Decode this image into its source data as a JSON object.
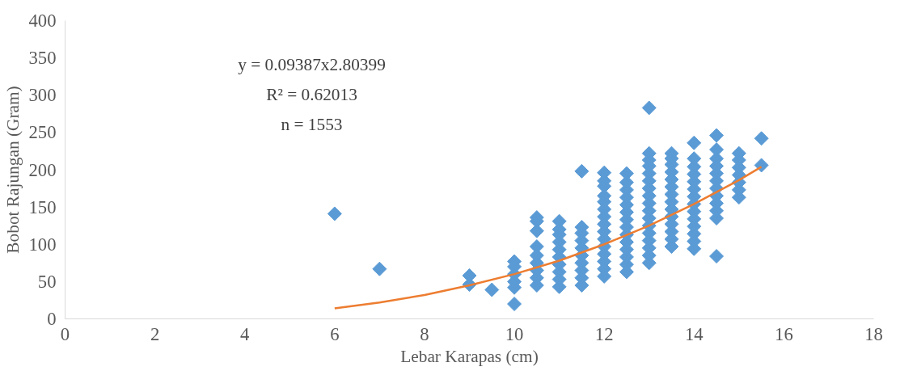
{
  "chart_data": {
    "type": "scatter",
    "xlabel": "Lebar Karapas (cm)",
    "ylabel": "Bobot Rajungan (Gram)",
    "annotations": [
      "y = 0.09387x2.80399",
      "R² = 0.62013",
      "n = 1553"
    ],
    "xlim": [
      0,
      18
    ],
    "xticks": [
      0,
      2,
      4,
      6,
      8,
      10,
      12,
      14,
      16,
      18
    ],
    "ylim": [
      0,
      400
    ],
    "yticks": [
      0,
      50,
      100,
      150,
      200,
      250,
      300,
      350,
      400
    ],
    "grid": false,
    "series": [
      {
        "marker": "diamond",
        "color": "#5b9bd5",
        "x": [
          6,
          7,
          9,
          9,
          9.5,
          10,
          10,
          10,
          10,
          10,
          10,
          10.5,
          10.5,
          10.5,
          10.5,
          10.5,
          10.5,
          10.5,
          10.5,
          10.5,
          11,
          11,
          11,
          11,
          11,
          11,
          11,
          11,
          11,
          11,
          11.5,
          11.5,
          11.5,
          11.5,
          11.5,
          11.5,
          11.5,
          11.5,
          11.5,
          11.5,
          12,
          12,
          12,
          12,
          12,
          12,
          12,
          12,
          12,
          12,
          12,
          12,
          12,
          12,
          12,
          12.5,
          12.5,
          12.5,
          12.5,
          12.5,
          12.5,
          12.5,
          12.5,
          12.5,
          12.5,
          12.5,
          12.5,
          12.5,
          12.5,
          13,
          13,
          13,
          13,
          13,
          13,
          13,
          13,
          13,
          13,
          13,
          13,
          13,
          13,
          13,
          13,
          13,
          13.5,
          13.5,
          13.5,
          13.5,
          13.5,
          13.5,
          13.5,
          13.5,
          13.5,
          13.5,
          13.5,
          13.5,
          13.5,
          13.5,
          14,
          14,
          14,
          14,
          14,
          14,
          14,
          14,
          14,
          14,
          14,
          14,
          14,
          14,
          14.5,
          14.5,
          14.5,
          14.5,
          14.5,
          14.5,
          14.5,
          14.5,
          14.5,
          14.5,
          14.5,
          14.5,
          15,
          15,
          15,
          15,
          15,
          15,
          15,
          15.5,
          15.5
        ],
        "values": [
          141,
          67,
          46,
          58,
          39,
          20,
          42,
          50,
          60,
          70,
          77,
          45,
          55,
          65,
          75,
          85,
          97,
          118,
          131,
          136,
          43,
          53,
          63,
          73,
          83,
          93,
          103,
          113,
          120,
          131,
          45,
          55,
          65,
          75,
          85,
          95,
          105,
          115,
          123,
          198,
          57,
          67,
          77,
          87,
          97,
          107,
          117,
          127,
          137,
          147,
          157,
          165,
          178,
          185,
          196,
          63,
          73,
          83,
          93,
          103,
          113,
          123,
          133,
          143,
          153,
          163,
          173,
          183,
          195,
          75,
          85,
          95,
          105,
          115,
          125,
          135,
          145,
          155,
          165,
          175,
          185,
          195,
          205,
          213,
          222,
          283,
          97,
          107,
          117,
          127,
          137,
          147,
          157,
          167,
          177,
          187,
          197,
          207,
          215,
          222,
          94,
          104,
          114,
          124,
          134,
          144,
          154,
          164,
          174,
          184,
          194,
          204,
          215,
          236,
          84,
          135,
          145,
          155,
          165,
          175,
          185,
          195,
          205,
          215,
          227,
          246,
          163,
          173,
          183,
          193,
          203,
          213,
          222,
          206,
          242
        ]
      },
      {
        "type": "line",
        "color": "#ed7d31",
        "x": [
          6,
          7,
          8,
          9,
          10,
          11,
          12,
          13,
          14,
          15,
          15.5
        ],
        "values": [
          14,
          22,
          32,
          45,
          60,
          78,
          100,
          125,
          154,
          186,
          204
        ]
      }
    ]
  }
}
